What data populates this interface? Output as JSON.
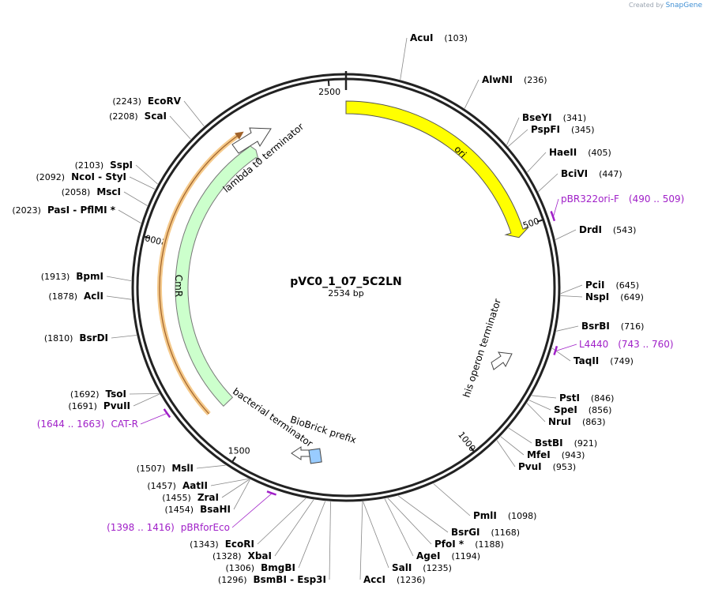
{
  "brand": {
    "created_by": "Created by",
    "name": "SnapGene"
  },
  "plasmid": {
    "name": "pVC0_1_07_5C2LN",
    "length": 2534,
    "length_label": "2534 bp"
  },
  "ticks": [
    {
      "label": "500"
    },
    {
      "label": "1000"
    },
    {
      "label": "1500"
    },
    {
      "label": "2000"
    },
    {
      "label": "2500"
    }
  ],
  "features": {
    "ori": "ori",
    "his_term": "his operon terminator",
    "lambda_term": "lambda t0 terminator",
    "cmr": "CmR",
    "bact_term": "bacterial terminator",
    "biobrick": "BioBrick prefix"
  },
  "sites": [
    {
      "id": "AcuI",
      "parts": [
        "AcuI"
      ],
      "pos": "(103)"
    },
    {
      "id": "AlwNI",
      "parts": [
        "AlwNI"
      ],
      "pos": "(236)"
    },
    {
      "id": "BseYI",
      "parts": [
        "BseYI"
      ],
      "pos": "(341)"
    },
    {
      "id": "PspFI",
      "parts": [
        "PspFI"
      ],
      "pos": "(345)"
    },
    {
      "id": "HaeII",
      "parts": [
        "HaeII"
      ],
      "pos": "(405)"
    },
    {
      "id": "BciVI",
      "parts": [
        "BciVI"
      ],
      "pos": "(447)"
    },
    {
      "id": "DrdI",
      "parts": [
        "DrdI"
      ],
      "pos": "(543)"
    },
    {
      "id": "PciI",
      "parts": [
        "PciI"
      ],
      "pos": "(645)"
    },
    {
      "id": "NspI",
      "parts": [
        "NspI"
      ],
      "pos": "(649)"
    },
    {
      "id": "BsrBI",
      "parts": [
        "BsrBI"
      ],
      "pos": "(716)"
    },
    {
      "id": "TaqII",
      "parts": [
        "TaqII"
      ],
      "pos": "(749)"
    },
    {
      "id": "PstI",
      "parts": [
        "PstI"
      ],
      "pos": "(846)"
    },
    {
      "id": "SpeI",
      "parts": [
        "SpeI"
      ],
      "pos": "(856)"
    },
    {
      "id": "NruI",
      "parts": [
        "NruI"
      ],
      "pos": "(863)"
    },
    {
      "id": "BstBI",
      "parts": [
        "BstBI"
      ],
      "pos": "(921)"
    },
    {
      "id": "MfeI",
      "parts": [
        "MfeI"
      ],
      "pos": "(943)"
    },
    {
      "id": "PvuI",
      "parts": [
        "PvuI"
      ],
      "pos": "(953)"
    },
    {
      "id": "PmlI",
      "parts": [
        "PmlI"
      ],
      "pos": "(1098)"
    },
    {
      "id": "BsrGI",
      "parts": [
        "BsrGI"
      ],
      "pos": "(1168)"
    },
    {
      "id": "PfoI",
      "parts": [
        "PfoI *"
      ],
      "pos": "(1188)"
    },
    {
      "id": "AgeI",
      "parts": [
        "AgeI"
      ],
      "pos": "(1194)"
    },
    {
      "id": "SalI",
      "parts": [
        "SalI"
      ],
      "pos": "(1235)"
    },
    {
      "id": "AccI",
      "parts": [
        "AccI"
      ],
      "pos": "(1236)"
    },
    {
      "id": "BsmBI",
      "parts": [
        "BsmBI",
        "-",
        "Esp3I"
      ],
      "pos": "(1296)"
    },
    {
      "id": "BmgBI",
      "parts": [
        "BmgBI"
      ],
      "pos": "(1306)"
    },
    {
      "id": "XbaI",
      "parts": [
        "XbaI"
      ],
      "pos": "(1328)"
    },
    {
      "id": "EcoRI",
      "parts": [
        "EcoRI"
      ],
      "pos": "(1343)"
    },
    {
      "id": "BsaHI",
      "parts": [
        "BsaHI"
      ],
      "pos": "(1454)"
    },
    {
      "id": "ZraI",
      "parts": [
        "ZraI"
      ],
      "pos": "(1455)"
    },
    {
      "id": "AatII",
      "parts": [
        "AatII"
      ],
      "pos": "(1457)"
    },
    {
      "id": "MslI",
      "parts": [
        "MslI"
      ],
      "pos": "(1507)"
    },
    {
      "id": "PvuII",
      "parts": [
        "PvuII"
      ],
      "pos": "(1691)"
    },
    {
      "id": "TsoI",
      "parts": [
        "TsoI"
      ],
      "pos": "(1692)"
    },
    {
      "id": "BsrDI",
      "parts": [
        "BsrDI"
      ],
      "pos": "(1810)"
    },
    {
      "id": "AclI",
      "parts": [
        "AclI"
      ],
      "pos": "(1878)"
    },
    {
      "id": "BpmI",
      "parts": [
        "BpmI"
      ],
      "pos": "(1913)"
    },
    {
      "id": "PasI",
      "parts": [
        "PasI",
        "-",
        "PflMI *"
      ],
      "pos": "(2023)"
    },
    {
      "id": "MscI",
      "parts": [
        "MscI"
      ],
      "pos": "(2058)"
    },
    {
      "id": "NcoI",
      "parts": [
        "NcoI",
        "-",
        "StyI"
      ],
      "pos": "(2092)"
    },
    {
      "id": "SspI",
      "parts": [
        "SspI"
      ],
      "pos": "(2103)"
    },
    {
      "id": "ScaI",
      "parts": [
        "ScaI"
      ],
      "pos": "(2208)"
    },
    {
      "id": "EcoRV",
      "parts": [
        "EcoRV"
      ],
      "pos": "(2243)"
    }
  ],
  "primers": [
    {
      "id": "pBR322ori-F",
      "name": "pBR322ori-F",
      "range": "(490 .. 509)"
    },
    {
      "id": "L4440",
      "name": "L4440",
      "range": "(743 .. 760)"
    },
    {
      "id": "CAT-R",
      "name": "CAT-R",
      "range": "(1644 .. 1663)"
    },
    {
      "id": "pBRforEco",
      "name": "pBRforEco",
      "range": "(1398 .. 1416)"
    }
  ],
  "colors": {
    "ori": "#ffff00",
    "cmr": "#ccffcc",
    "cmr_primer": "#f5c98a",
    "biobrick": "#99ccff",
    "primer": "#a020c8"
  }
}
